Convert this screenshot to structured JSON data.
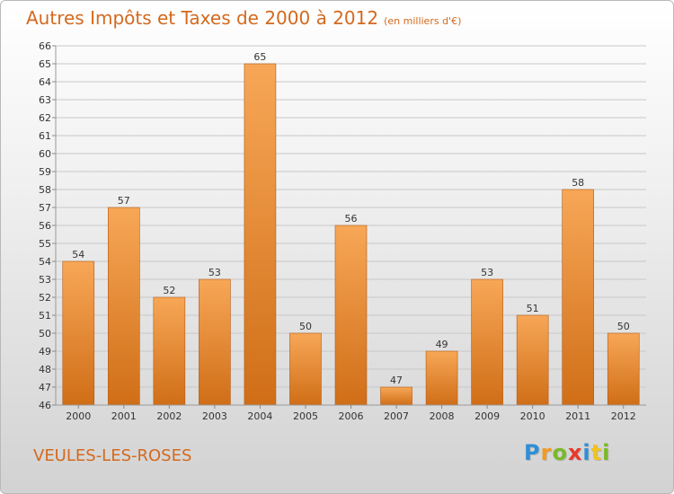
{
  "title": "Autres Impôts et Taxes de 2000 à 2012",
  "unit": "(en milliers d'€)",
  "place": "VEULES-LES-ROSES",
  "brand": {
    "letters": [
      "P",
      "r",
      "o",
      "x",
      "i",
      "t",
      "i"
    ],
    "colors": [
      "#2f8fd6",
      "#f29a1f",
      "#7ab929",
      "#e8392a",
      "#2f8fd6",
      "#f2c21f",
      "#7ab929"
    ]
  },
  "colors": {
    "title": "#d4691e",
    "bar_top": "#f7a757",
    "bar_bottom": "#d06e17",
    "bar_edge": "#b55a12",
    "grid": "#c8c8c8"
  },
  "chart_data": {
    "type": "bar",
    "title": "Autres Impôts et Taxes de 2000 à 2012",
    "xlabel": "",
    "ylabel": "",
    "categories": [
      "2000",
      "2001",
      "2002",
      "2003",
      "2004",
      "2005",
      "2006",
      "2007",
      "2008",
      "2009",
      "2010",
      "2011",
      "2012"
    ],
    "values": [
      54,
      57,
      52,
      53,
      65,
      50,
      56,
      47,
      49,
      53,
      51,
      58,
      50
    ],
    "ylim": [
      46,
      66
    ],
    "yticks": [
      46,
      47,
      48,
      49,
      50,
      51,
      52,
      53,
      54,
      55,
      56,
      57,
      58,
      59,
      60,
      61,
      62,
      63,
      64,
      65,
      66
    ],
    "grid": true,
    "legend": "none"
  }
}
